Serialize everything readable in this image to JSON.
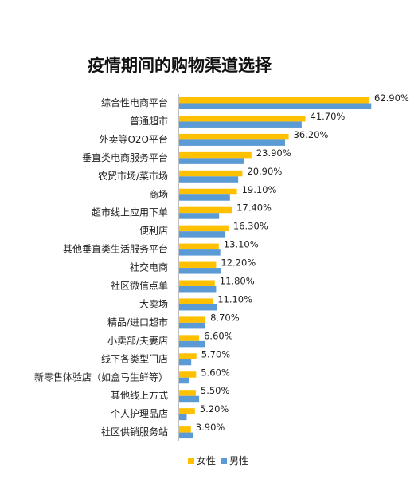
{
  "chart_data": {
    "type": "bar",
    "orientation": "horizontal",
    "title": "疫情期间的购物渠道选择",
    "categories": [
      "综合性电商平台",
      "普通超市",
      "外卖等O2O平台",
      "垂直类电商服务平台",
      "农贸市场/菜市场",
      "商场",
      "超市线上应用下单",
      "便利店",
      "其他垂直类生活服务平台",
      "社交电商",
      "社区微信点单",
      "大卖场",
      "精品/进口超市",
      "小卖部/夫妻店",
      "线下各类型门店",
      "新零售体验店（如盒马生鲜等）",
      "其他线上方式",
      "个人护理品店",
      "社区供销服务站"
    ],
    "data_labels": [
      "62.90%",
      "41.70%",
      "36.20%",
      "23.90%",
      "20.90%",
      "19.10%",
      "17.40%",
      "16.30%",
      "13.10%",
      "12.20%",
      "11.80%",
      "11.10%",
      "8.70%",
      "6.60%",
      "5.70%",
      "5.60%",
      "5.50%",
      "5.20%",
      "3.90%"
    ],
    "series": [
      {
        "name": "女性",
        "color": "#FFC000",
        "values": [
          62.9,
          41.7,
          36.2,
          23.9,
          20.9,
          19.1,
          17.4,
          16.3,
          13.1,
          12.2,
          11.8,
          11.1,
          8.7,
          6.6,
          5.7,
          5.6,
          5.5,
          5.2,
          3.9
        ]
      },
      {
        "name": "男性",
        "color": "#5B9BD5",
        "values": [
          63.5,
          40.5,
          35.0,
          21.5,
          19.5,
          16.8,
          13.2,
          15.3,
          13.6,
          13.8,
          12.2,
          12.5,
          8.6,
          8.5,
          4.0,
          3.2,
          6.6,
          2.5,
          4.6
        ]
      }
    ],
    "xlim": [
      0,
      66
    ],
    "grid": false,
    "legend": "bottom-center"
  }
}
